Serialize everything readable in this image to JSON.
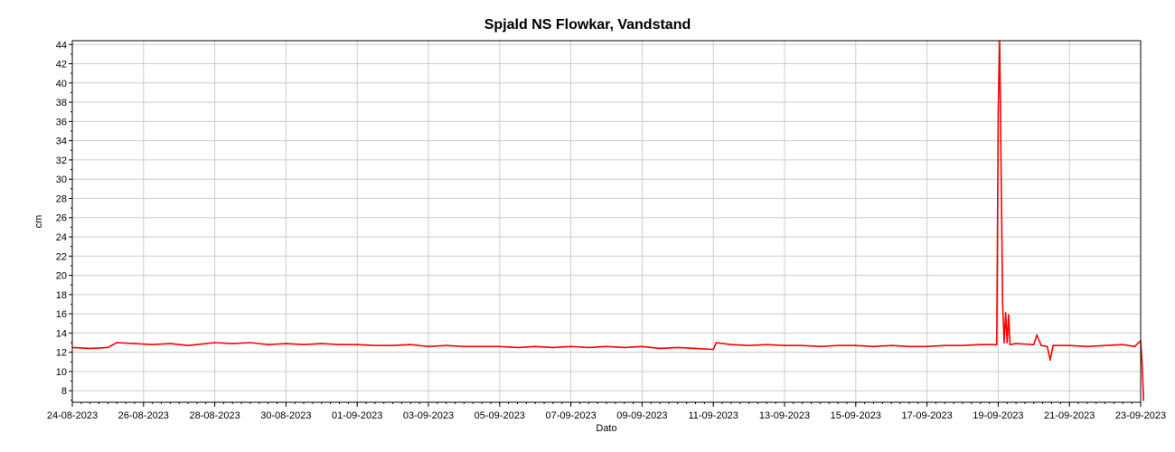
{
  "chart_data": {
    "type": "line",
    "title": "Spjald NS Flowkar, Vandstand",
    "xlabel": "Dato",
    "ylabel": "cm",
    "ylim": [
      6.8,
      44.4
    ],
    "yticks": [
      8,
      10,
      12,
      14,
      16,
      18,
      20,
      22,
      24,
      26,
      28,
      30,
      32,
      34,
      36,
      38,
      40,
      42,
      44
    ],
    "xlim": [
      "24-08-2023",
      "23-09-2023"
    ],
    "xticks": [
      "24-08-2023",
      "26-08-2023",
      "28-08-2023",
      "30-08-2023",
      "01-09-2023",
      "03-09-2023",
      "05-09-2023",
      "07-09-2023",
      "09-09-2023",
      "11-09-2023",
      "13-09-2023",
      "15-09-2023",
      "17-09-2023",
      "19-09-2023",
      "21-09-2023",
      "23-09-2023"
    ],
    "grid": true,
    "series_color": "#ff0000",
    "series": [
      {
        "points": [
          [
            "2023-08-24T00:00",
            12.5
          ],
          [
            "2023-08-24T12:00",
            12.4
          ],
          [
            "2023-08-25T00:00",
            12.5
          ],
          [
            "2023-08-25T06:00",
            13.0
          ],
          [
            "2023-08-25T18:00",
            12.9
          ],
          [
            "2023-08-26T06:00",
            12.8
          ],
          [
            "2023-08-26T18:00",
            12.9
          ],
          [
            "2023-08-27T06:00",
            12.7
          ],
          [
            "2023-08-27T18:00",
            12.9
          ],
          [
            "2023-08-28T00:00",
            13.0
          ],
          [
            "2023-08-28T12:00",
            12.9
          ],
          [
            "2023-08-29T00:00",
            13.0
          ],
          [
            "2023-08-29T12:00",
            12.8
          ],
          [
            "2023-08-30T00:00",
            12.9
          ],
          [
            "2023-08-30T12:00",
            12.8
          ],
          [
            "2023-08-31T00:00",
            12.9
          ],
          [
            "2023-08-31T12:00",
            12.8
          ],
          [
            "2023-09-01T00:00",
            12.8
          ],
          [
            "2023-09-01T12:00",
            12.7
          ],
          [
            "2023-09-02T00:00",
            12.7
          ],
          [
            "2023-09-02T12:00",
            12.8
          ],
          [
            "2023-09-03T00:00",
            12.6
          ],
          [
            "2023-09-03T12:00",
            12.7
          ],
          [
            "2023-09-04T00:00",
            12.6
          ],
          [
            "2023-09-04T12:00",
            12.6
          ],
          [
            "2023-09-05T00:00",
            12.6
          ],
          [
            "2023-09-05T12:00",
            12.5
          ],
          [
            "2023-09-06T00:00",
            12.6
          ],
          [
            "2023-09-06T12:00",
            12.5
          ],
          [
            "2023-09-07T00:00",
            12.6
          ],
          [
            "2023-09-07T12:00",
            12.5
          ],
          [
            "2023-09-08T00:00",
            12.6
          ],
          [
            "2023-09-08T12:00",
            12.5
          ],
          [
            "2023-09-09T00:00",
            12.6
          ],
          [
            "2023-09-09T12:00",
            12.4
          ],
          [
            "2023-09-10T00:00",
            12.5
          ],
          [
            "2023-09-10T12:00",
            12.4
          ],
          [
            "2023-09-11T00:00",
            12.3
          ],
          [
            "2023-09-11T02:00",
            13.0
          ],
          [
            "2023-09-11T12:00",
            12.8
          ],
          [
            "2023-09-12T00:00",
            12.7
          ],
          [
            "2023-09-12T12:00",
            12.8
          ],
          [
            "2023-09-13T00:00",
            12.7
          ],
          [
            "2023-09-13T12:00",
            12.7
          ],
          [
            "2023-09-14T00:00",
            12.6
          ],
          [
            "2023-09-14T12:00",
            12.7
          ],
          [
            "2023-09-15T00:00",
            12.7
          ],
          [
            "2023-09-15T12:00",
            12.6
          ],
          [
            "2023-09-16T00:00",
            12.7
          ],
          [
            "2023-09-16T12:00",
            12.6
          ],
          [
            "2023-09-17T00:00",
            12.6
          ],
          [
            "2023-09-17T12:00",
            12.7
          ],
          [
            "2023-09-18T00:00",
            12.7
          ],
          [
            "2023-09-18T12:00",
            12.8
          ],
          [
            "2023-09-18T23:00",
            12.8
          ],
          [
            "2023-09-19T00:00",
            37.0
          ],
          [
            "2023-09-19T01:00",
            44.3
          ],
          [
            "2023-09-19T02:00",
            30.5
          ],
          [
            "2023-09-19T03:00",
            17.0
          ],
          [
            "2023-09-19T04:00",
            13.0
          ],
          [
            "2023-09-19T05:00",
            16.1
          ],
          [
            "2023-09-19T06:00",
            13.0
          ],
          [
            "2023-09-19T07:00",
            15.9
          ],
          [
            "2023-09-19T08:00",
            12.8
          ],
          [
            "2023-09-19T12:00",
            12.9
          ],
          [
            "2023-09-20T00:00",
            12.8
          ],
          [
            "2023-09-20T02:00",
            13.8
          ],
          [
            "2023-09-20T05:00",
            12.7
          ],
          [
            "2023-09-20T09:00",
            12.6
          ],
          [
            "2023-09-20T11:00",
            11.2
          ],
          [
            "2023-09-20T13:00",
            12.7
          ],
          [
            "2023-09-21T00:00",
            12.7
          ],
          [
            "2023-09-21T12:00",
            12.6
          ],
          [
            "2023-09-22T00:00",
            12.7
          ],
          [
            "2023-09-22T12:00",
            12.8
          ],
          [
            "2023-09-22T20:00",
            12.6
          ],
          [
            "2023-09-23T00:00",
            13.2
          ],
          [
            "2023-09-23T01:00",
            10.8
          ],
          [
            "2023-09-23T02:00",
            7.0
          ]
        ]
      }
    ]
  }
}
